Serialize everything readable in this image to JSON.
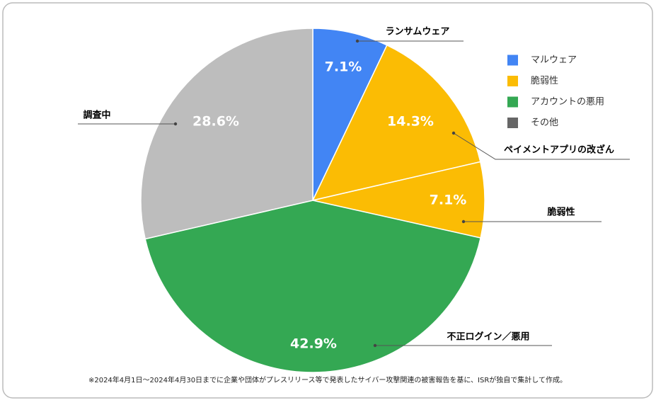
{
  "chart_data": {
    "type": "pie",
    "categories": [
      "ランサムウェア",
      "ペイメントアプリの改ざん",
      "脆弱性",
      "不正ログイン／悪用",
      "調査中"
    ],
    "values": [
      7.1,
      14.3,
      7.1,
      42.9,
      28.6
    ],
    "value_labels": [
      "7.1%",
      "14.3%",
      "7.1%",
      "42.9%",
      "28.6%"
    ],
    "colors": [
      "#4285f4",
      "#fbbc04",
      "#fbbc04",
      "#34a853",
      "#bdbdbd"
    ],
    "legend": [
      {
        "name": "マルウェア",
        "color": "#4285f4"
      },
      {
        "name": "脆弱性",
        "color": "#fbbc04"
      },
      {
        "name": "アカウントの悪用",
        "color": "#34a853"
      },
      {
        "name": "その他",
        "color": "#666666"
      }
    ],
    "note": "※2024年4月1日～2024年4月30日までに企業や団体がプレスリリース等で発表したサイバー攻撃関連の被害報告を基に、ISRが独自で集計して作成。"
  }
}
